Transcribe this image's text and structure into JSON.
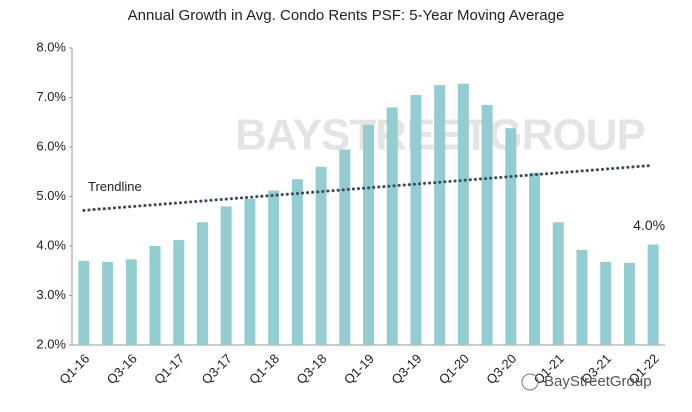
{
  "chart_data": {
    "type": "bar",
    "title": "Annual Growth in Avg.  Condo Rents PSF: 5-Year Moving Average",
    "categories": [
      "Q1-16",
      null,
      "Q3-16",
      null,
      "Q1-17",
      null,
      "Q3-17",
      null,
      "Q1-18",
      null,
      "Q3-18",
      null,
      "Q1-19",
      null,
      "Q3-19",
      null,
      "Q1-20",
      null,
      "Q3-20",
      null,
      "Q1-21",
      null,
      "Q3-21",
      null,
      "Q1-22"
    ],
    "values": [
      3.7,
      3.68,
      3.73,
      4.0,
      4.12,
      4.48,
      4.8,
      4.95,
      5.12,
      5.35,
      5.6,
      5.95,
      6.45,
      6.8,
      7.05,
      7.25,
      7.28,
      6.85,
      6.38,
      5.48,
      4.48,
      3.92,
      3.68,
      3.66,
      4.03
    ],
    "value_labels": [
      null,
      null,
      null,
      null,
      null,
      null,
      null,
      null,
      null,
      null,
      null,
      null,
      null,
      null,
      null,
      null,
      null,
      null,
      null,
      null,
      null,
      null,
      null,
      null,
      "4.0%"
    ],
    "color": "#93ccd1",
    "ylim": [
      2,
      8
    ],
    "yticks": [
      {
        "value": 2,
        "label": "2.0%"
      },
      {
        "value": 3,
        "label": "3.0%"
      },
      {
        "value": 4,
        "label": "4.0%"
      },
      {
        "value": 5,
        "label": "5.0%"
      },
      {
        "value": 6,
        "label": "6.0%"
      },
      {
        "value": 7,
        "label": "7.0%"
      },
      {
        "value": 8,
        "label": "8.0%"
      }
    ],
    "trendline": {
      "label": "Trendline",
      "start": 4.72,
      "end": 5.63,
      "color": "#3d4a5c"
    },
    "watermark": "BAYSTREETGROUP",
    "source": "BayStreetGroup"
  }
}
